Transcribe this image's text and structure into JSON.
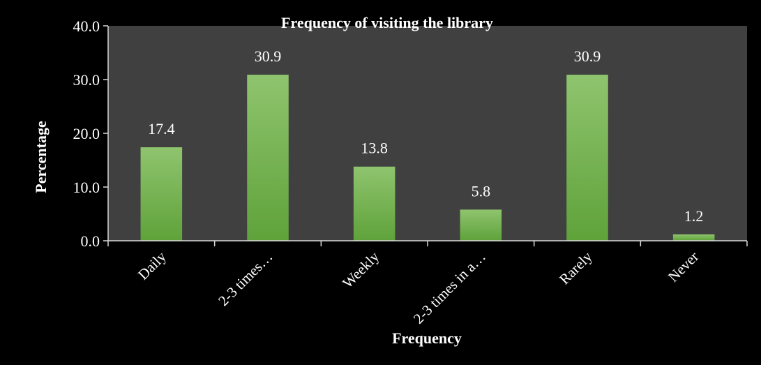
{
  "chart_data": {
    "type": "bar",
    "title": "Frequency of visiting the library",
    "xlabel": "Frequency",
    "ylabel": "Percentage",
    "categories": [
      "Daily",
      "2-3 times…",
      "Weekly",
      "2-3 times in a…",
      "Rarely",
      "Never"
    ],
    "values": [
      17.4,
      30.9,
      13.8,
      5.8,
      30.9,
      1.2
    ],
    "value_labels": [
      "17.4",
      "30.9",
      "13.8",
      "5.8",
      "30.9",
      "1.2"
    ],
    "ylim": [
      0,
      40
    ],
    "yticks": [
      "0.0",
      "10.0",
      "20.0",
      "30.0",
      "40.0"
    ],
    "ytick_values": [
      0,
      10,
      20,
      30,
      40
    ],
    "grid": false,
    "legend": "none",
    "colors": {
      "background": "#000000",
      "plot_area": "#404040",
      "bar_top": "#8fc46e",
      "bar_bottom": "#5fa23a",
      "axis": "#d9d9d9",
      "text": "#ffffff"
    }
  }
}
